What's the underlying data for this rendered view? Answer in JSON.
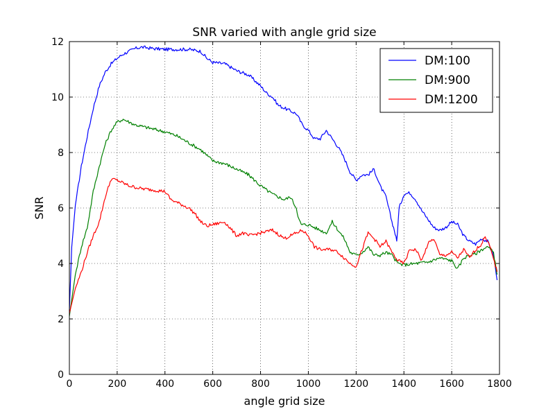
{
  "chart_data": {
    "type": "line",
    "title": "SNR varied with angle grid size",
    "xlabel": "angle grid size",
    "ylabel": "SNR",
    "xlim": [
      0,
      1800
    ],
    "ylim": [
      0,
      12
    ],
    "xticks": [
      "0",
      "200",
      "400",
      "600",
      "800",
      "1000",
      "1200",
      "1400",
      "1600",
      "1800"
    ],
    "yticks": [
      "0",
      "2",
      "4",
      "6",
      "8",
      "10",
      "12"
    ],
    "grid": true,
    "legend_position": "top-right",
    "series": [
      {
        "name": "DM:100",
        "color": "#0000ff",
        "x": [
          0,
          10,
          25,
          50,
          75,
          100,
          125,
          150,
          175,
          200,
          225,
          250,
          275,
          300,
          325,
          350,
          400,
          450,
          500,
          550,
          575,
          600,
          650,
          700,
          750,
          800,
          825,
          850,
          875,
          900,
          925,
          950,
          975,
          1000,
          1025,
          1050,
          1075,
          1100,
          1125,
          1150,
          1175,
          1200,
          1225,
          1250,
          1275,
          1300,
          1325,
          1350,
          1360,
          1370,
          1380,
          1400,
          1425,
          1450,
          1475,
          1500,
          1525,
          1550,
          1575,
          1600,
          1625,
          1650,
          1675,
          1700,
          1725,
          1750,
          1775,
          1790
        ],
        "y": [
          2.3,
          4.6,
          6.1,
          7.5,
          8.6,
          9.6,
          10.4,
          10.9,
          11.2,
          11.4,
          11.55,
          11.65,
          11.75,
          11.8,
          11.78,
          11.75,
          11.72,
          11.72,
          11.72,
          11.65,
          11.4,
          11.25,
          11.2,
          10.95,
          10.8,
          10.4,
          10.15,
          10.0,
          9.7,
          9.6,
          9.5,
          9.4,
          9.0,
          8.8,
          8.5,
          8.5,
          8.8,
          8.5,
          8.2,
          7.8,
          7.3,
          7.0,
          7.2,
          7.2,
          7.4,
          6.8,
          6.4,
          5.5,
          5.2,
          4.8,
          6.0,
          6.5,
          6.55,
          6.3,
          5.9,
          5.6,
          5.3,
          5.2,
          5.3,
          5.5,
          5.4,
          5.0,
          4.8,
          4.7,
          4.9,
          4.8,
          4.3,
          3.4
        ]
      },
      {
        "name": "DM:900",
        "color": "#008000",
        "x": [
          0,
          25,
          50,
          75,
          100,
          125,
          150,
          175,
          200,
          225,
          250,
          275,
          300,
          350,
          400,
          450,
          500,
          550,
          600,
          650,
          700,
          750,
          800,
          850,
          900,
          925,
          950,
          960,
          970,
          1000,
          1025,
          1050,
          1075,
          1100,
          1125,
          1150,
          1175,
          1200,
          1225,
          1250,
          1275,
          1300,
          1325,
          1350,
          1375,
          1400,
          1450,
          1500,
          1550,
          1600,
          1625,
          1650,
          1675,
          1700,
          1725,
          1750,
          1775,
          1790
        ],
        "y": [
          2.1,
          3.6,
          4.6,
          5.3,
          6.6,
          7.5,
          8.3,
          8.8,
          9.1,
          9.2,
          9.1,
          9.0,
          8.95,
          8.85,
          8.75,
          8.6,
          8.35,
          8.1,
          7.7,
          7.6,
          7.4,
          7.2,
          6.8,
          6.5,
          6.3,
          6.4,
          6.0,
          5.6,
          5.4,
          5.4,
          5.3,
          5.2,
          5.1,
          5.5,
          5.2,
          4.9,
          4.4,
          4.3,
          4.4,
          4.6,
          4.3,
          4.3,
          4.4,
          4.3,
          4.0,
          3.95,
          4.0,
          4.05,
          4.2,
          4.1,
          3.8,
          4.2,
          4.3,
          4.35,
          4.5,
          4.6,
          4.4,
          3.6
        ]
      },
      {
        "name": "DM:1200",
        "color": "#ff0000",
        "x": [
          0,
          25,
          50,
          75,
          100,
          125,
          150,
          175,
          200,
          250,
          300,
          350,
          400,
          425,
          450,
          500,
          525,
          550,
          575,
          600,
          650,
          700,
          725,
          750,
          800,
          850,
          900,
          950,
          975,
          1000,
          1025,
          1050,
          1075,
          1100,
          1125,
          1150,
          1175,
          1200,
          1225,
          1250,
          1275,
          1300,
          1325,
          1350,
          1375,
          1400,
          1425,
          1450,
          1475,
          1500,
          1525,
          1550,
          1575,
          1600,
          1625,
          1650,
          1675,
          1700,
          1725,
          1740,
          1760,
          1790
        ],
        "y": [
          2.2,
          3.1,
          3.7,
          4.4,
          5.0,
          5.5,
          6.4,
          7.05,
          7.0,
          6.8,
          6.7,
          6.65,
          6.6,
          6.3,
          6.2,
          6.0,
          5.8,
          5.5,
          5.35,
          5.4,
          5.5,
          5.0,
          5.1,
          5.0,
          5.1,
          5.2,
          4.9,
          5.1,
          5.2,
          5.0,
          4.6,
          4.5,
          4.5,
          4.5,
          4.4,
          4.2,
          4.0,
          3.9,
          4.5,
          5.1,
          4.9,
          4.6,
          4.8,
          4.4,
          4.1,
          4.0,
          4.5,
          4.5,
          4.1,
          4.7,
          4.9,
          4.3,
          4.3,
          4.4,
          4.2,
          4.5,
          4.2,
          4.5,
          4.7,
          5.0,
          4.6,
          3.7
        ]
      }
    ]
  }
}
